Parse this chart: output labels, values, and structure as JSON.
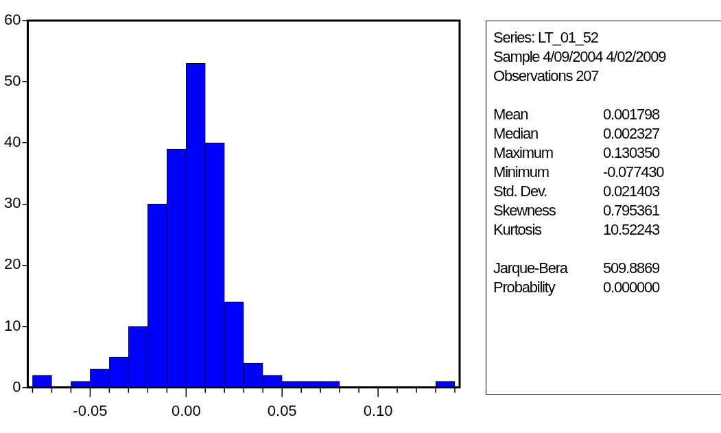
{
  "chart_data": {
    "type": "histogram",
    "bins": [
      -0.08,
      -0.07,
      -0.06,
      -0.05,
      -0.04,
      -0.03,
      -0.02,
      -0.01,
      0.0,
      0.01,
      0.02,
      0.03,
      0.04,
      0.05,
      0.06,
      0.07,
      0.08,
      0.09,
      0.1,
      0.11,
      0.12,
      0.13,
      0.14
    ],
    "values": [
      2,
      0,
      1,
      3,
      5,
      10,
      30,
      39,
      53,
      40,
      14,
      4,
      2,
      1,
      1,
      1,
      0,
      0,
      0,
      0,
      0,
      1
    ],
    "color": "#0000ff",
    "xlim": [
      -0.0825,
      0.1425
    ],
    "xticks": [
      {
        "value": -0.08,
        "label": null
      },
      {
        "value": -0.07,
        "label": null
      },
      {
        "value": -0.06,
        "label": null
      },
      {
        "value": -0.05,
        "label": "-0.05"
      },
      {
        "value": -0.04,
        "label": null
      },
      {
        "value": -0.03,
        "label": null
      },
      {
        "value": -0.02,
        "label": null
      },
      {
        "value": -0.01,
        "label": null
      },
      {
        "value": 0.0,
        "label": "0.00"
      },
      {
        "value": 0.01,
        "label": null
      },
      {
        "value": 0.02,
        "label": null
      },
      {
        "value": 0.03,
        "label": null
      },
      {
        "value": 0.04,
        "label": null
      },
      {
        "value": 0.05,
        "label": "0.05"
      },
      {
        "value": 0.06,
        "label": null
      },
      {
        "value": 0.07,
        "label": null
      },
      {
        "value": 0.08,
        "label": null
      },
      {
        "value": 0.09,
        "label": null
      },
      {
        "value": 0.1,
        "label": "0.10"
      },
      {
        "value": 0.11,
        "label": null
      },
      {
        "value": 0.12,
        "label": null
      },
      {
        "value": 0.13,
        "label": null
      },
      {
        "value": 0.14,
        "label": null
      }
    ],
    "ylim": [
      0,
      60
    ],
    "yticks": [
      0,
      10,
      20,
      30,
      40,
      50,
      60
    ],
    "grid": false,
    "legend": false,
    "annotations": [
      "Series: LT_01_52",
      "Sample 4/09/2004 4/02/2009",
      "Observations 207",
      "Mean\t0.001798",
      "Median\t0.002327",
      "Maximum\t0.130350",
      "Minimum\t-0.077430",
      "Std. Dev.\t0.021403",
      "Skewness\t0.795361",
      "Kurtosis\t10.52243",
      "Jarque-Bera\t509.8869",
      "Probability\t0.000000"
    ]
  }
}
